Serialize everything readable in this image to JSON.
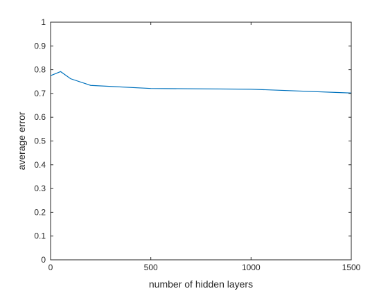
{
  "chart_data": {
    "type": "line",
    "title": "",
    "xlabel": "number of hidden layers",
    "ylabel": "average error",
    "xlim": [
      0,
      1500
    ],
    "ylim": [
      0,
      1
    ],
    "xticks": [
      0,
      500,
      1000,
      1500
    ],
    "xtick_labels": [
      "0",
      "500",
      "1000",
      "1500"
    ],
    "yticks": [
      0,
      0.1,
      0.2,
      0.3,
      0.4,
      0.5,
      0.6,
      0.7,
      0.8,
      0.9,
      1
    ],
    "ytick_labels": [
      "0",
      "0.1",
      "0.2",
      "0.3",
      "0.4",
      "0.5",
      "0.6",
      "0.7",
      "0.8",
      "0.9",
      "1"
    ],
    "grid": false,
    "series": [
      {
        "color": "#0072bd",
        "x": [
          0,
          50,
          100,
          200,
          500,
          1000,
          1500
        ],
        "y": [
          0.775,
          0.792,
          0.762,
          0.734,
          0.721,
          0.718,
          0.702
        ]
      }
    ]
  }
}
